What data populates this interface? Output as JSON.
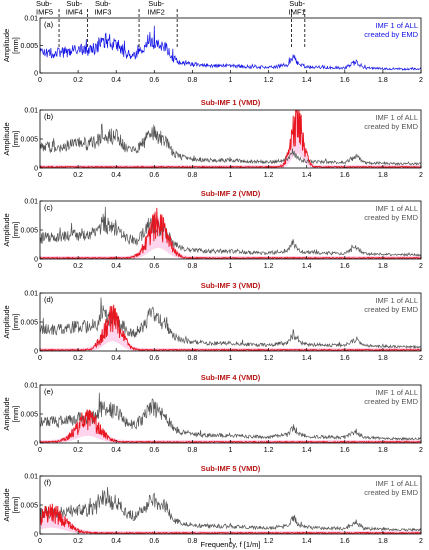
{
  "figure": {
    "xlabel": "Frequency,  f  [1/m]",
    "ylabel_line1": "Amplitude",
    "ylabel_line2": "[mm]"
  },
  "top_labels": [
    {
      "line1": "Sub-",
      "line2": "IMF5",
      "x": 0.0
    },
    {
      "line1": "Sub-",
      "line2": "IMF4",
      "x": 0.18
    },
    {
      "line1": "Sub-",
      "line2": "IMF3",
      "x": 0.33
    },
    {
      "line1": "Sub-",
      "line2": "IMF2",
      "x": 0.61
    },
    {
      "line1": "Sub-",
      "line2": "IMF1",
      "x": 1.35
    }
  ],
  "colors": {
    "emd_top": "#1414e6",
    "emd_gray": "#555555",
    "vmd_red": "#e8141e",
    "vmd_band": "#ff88cc",
    "title_red": "#b81414",
    "axis": "#000000"
  },
  "chart_data": [
    {
      "type": "line",
      "panel_label": "(a)",
      "title": "",
      "legend": {
        "line1": "IMF 1 of ALL",
        "line2": "created by EMD",
        "placement": "top-right"
      },
      "xlim": [
        0,
        2
      ],
      "ylim": [
        0,
        0.01
      ],
      "xticks": [
        "0",
        "0.2",
        "0.4",
        "0.6",
        "0.8",
        "1",
        "1.2",
        "1.4",
        "1.6",
        "1.8",
        "2"
      ],
      "yticks": [
        "0",
        "0.005",
        "0.01"
      ],
      "dashed_boundaries": [
        0.1,
        0.25,
        0.52,
        0.72,
        1.32,
        1.39
      ],
      "series": [
        {
          "role": "emd",
          "color": "#1414e6",
          "x": [
            0,
            0.05,
            0.1,
            0.15,
            0.2,
            0.25,
            0.3,
            0.33,
            0.36,
            0.4,
            0.45,
            0.5,
            0.55,
            0.58,
            0.62,
            0.66,
            0.7,
            0.75,
            0.8,
            0.9,
            1.0,
            1.1,
            1.2,
            1.3,
            1.33,
            1.36,
            1.4,
            1.5,
            1.6,
            1.66,
            1.7,
            1.8,
            1.9,
            2.0
          ],
          "y": [
            0.0035,
            0.0036,
            0.0036,
            0.0038,
            0.0042,
            0.004,
            0.0045,
            0.0062,
            0.0055,
            0.0052,
            0.0035,
            0.003,
            0.0045,
            0.0062,
            0.0052,
            0.0045,
            0.0025,
            0.0018,
            0.0015,
            0.0013,
            0.0013,
            0.0011,
            0.001,
            0.0014,
            0.0028,
            0.0015,
            0.0011,
            0.001,
            0.0009,
            0.002,
            0.0009,
            0.0008,
            0.0007,
            0.0007
          ]
        }
      ]
    },
    {
      "type": "line",
      "panel_label": "(b)",
      "title": "Sub-IMF 1 (VMD)",
      "legend": {
        "line1": "IMF 1 of ALL",
        "line2": "created by EMD",
        "placement": "top-right"
      },
      "xlim": [
        0,
        2
      ],
      "ylim": [
        0,
        0.01
      ],
      "xticks": [
        "0",
        "0.2",
        "0.4",
        "0.6",
        "0.8",
        "1",
        "1.2",
        "1.4",
        "1.6",
        "1.8",
        "2"
      ],
      "yticks": [
        "0",
        "0.005",
        "0.01"
      ],
      "series": [
        {
          "role": "vmd",
          "name": "Sub-IMF 1",
          "color": "#e8141e",
          "center": 1.35,
          "peak": 0.0085,
          "width": 0.03,
          "floor": 0.0002
        }
      ]
    },
    {
      "type": "line",
      "panel_label": "(c)",
      "title": "Sub-IMF 2 (VMD)",
      "legend": {
        "line1": "IMF 1 of ALL",
        "line2": "created by EMD",
        "placement": "top-right"
      },
      "xlim": [
        0,
        2
      ],
      "ylim": [
        0,
        0.01
      ],
      "xticks": [
        "0",
        "0.2",
        "0.4",
        "0.6",
        "0.8",
        "1",
        "1.2",
        "1.4",
        "1.6",
        "1.8",
        "2"
      ],
      "yticks": [
        "0",
        "0.005",
        "0.01"
      ],
      "series": [
        {
          "role": "vmd",
          "name": "Sub-IMF 2",
          "color": "#e8141e",
          "center": 0.62,
          "peak": 0.0065,
          "width": 0.05,
          "floor": 0.0002
        }
      ]
    },
    {
      "type": "line",
      "panel_label": "(d)",
      "title": "Sub-IMF 3 (VMD)",
      "legend": {
        "line1": "IMF 1 of ALL",
        "line2": "created by EMD",
        "placement": "top-right"
      },
      "xlim": [
        0,
        2
      ],
      "ylim": [
        0,
        0.01
      ],
      "xticks": [
        "0",
        "0.2",
        "0.4",
        "0.6",
        "0.8",
        "1",
        "1.2",
        "1.4",
        "1.6",
        "1.8",
        "2"
      ],
      "yticks": [
        "0",
        "0.005",
        "0.01"
      ],
      "series": [
        {
          "role": "vmd",
          "name": "Sub-IMF 3",
          "color": "#e8141e",
          "center": 0.38,
          "peak": 0.0058,
          "width": 0.045,
          "floor": 0.0002
        }
      ]
    },
    {
      "type": "line",
      "panel_label": "(e)",
      "title": "Sub-IMF 4 (VMD)",
      "legend": {
        "line1": "IMF 1 of ALL",
        "line2": "created by EMD",
        "placement": "top-right"
      },
      "xlim": [
        0,
        2
      ],
      "ylim": [
        0,
        0.01
      ],
      "xticks": [
        "0",
        "0.2",
        "0.4",
        "0.6",
        "0.8",
        "1",
        "1.2",
        "1.4",
        "1.6",
        "1.8",
        "2"
      ],
      "yticks": [
        "0",
        "0.005",
        "0.01"
      ],
      "series": [
        {
          "role": "vmd",
          "name": "Sub-IMF 4",
          "color": "#e8141e",
          "center": 0.25,
          "peak": 0.0042,
          "width": 0.06,
          "floor": 0.0002
        }
      ]
    },
    {
      "type": "line",
      "panel_label": "(f)",
      "title": "Sub-IMF 5 (VMD)",
      "legend": {
        "line1": "IMF 1 of ALL",
        "line2": "created by EMD",
        "placement": "top-right"
      },
      "xlim": [
        0,
        2
      ],
      "ylim": [
        0,
        0.01
      ],
      "xticks": [
        "0",
        "0.2",
        "0.4",
        "0.6",
        "0.8",
        "1",
        "1.2",
        "1.4",
        "1.6",
        "1.8",
        "2"
      ],
      "yticks": [
        "0",
        "0.005",
        "0.01"
      ],
      "series": [
        {
          "role": "vmd",
          "name": "Sub-IMF 5",
          "color": "#e8141e",
          "center": 0.06,
          "peak": 0.0038,
          "width": 0.07,
          "floor": 0.0002
        }
      ]
    }
  ]
}
